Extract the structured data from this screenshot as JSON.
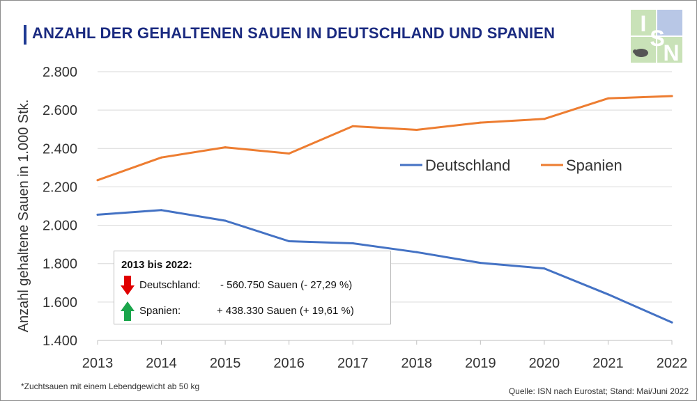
{
  "header": {
    "title": "ANZAHL DER GEHALTENEN SAUEN IN DEUTSCHLAND UND SPANIEN",
    "logo_text": "ISN"
  },
  "colors": {
    "deutschland": "#4472c4",
    "spanien": "#ed7d31",
    "title": "#1a2a80",
    "grid": "#d9d9d9",
    "arrow_down": "#e00000",
    "arrow_up": "#1aa54b"
  },
  "info_box": {
    "heading": "2013 bis 2022:",
    "rows": [
      {
        "label": "Deutschland:",
        "value": "- 560.750 Sauen (- 27,29 %)",
        "direction": "down"
      },
      {
        "label": "Spanien:",
        "value": "+ 438.330 Sauen (+ 19,61 %)",
        "direction": "up"
      }
    ]
  },
  "footer": {
    "footnote": "*Zuchtsauen mit einem Lebendgewicht ab 50 kg",
    "source": "Quelle: ISN nach Eurostat; Stand: Mai/Juni 2022"
  },
  "chart_data": {
    "type": "line",
    "title": "ANZAHL DER GEHALTENEN SAUEN IN DEUTSCHLAND UND SPANIEN",
    "xlabel": "",
    "ylabel": "Anzahl gehaltene Sauen in 1.000 Stk.",
    "x": [
      "2013",
      "2014",
      "2015",
      "2016",
      "2017",
      "2018",
      "2019",
      "2020",
      "2021",
      "2022"
    ],
    "ylim": [
      1400,
      2800
    ],
    "yticks": [
      "1.400",
      "1.600",
      "1.800",
      "2.000",
      "2.200",
      "2.400",
      "2.600",
      "2.800"
    ],
    "grid": true,
    "legend_position": "center-right",
    "series": [
      {
        "name": "Deutschland",
        "color": "#4472c4",
        "values": [
          2055,
          2079,
          2024,
          1917,
          1906,
          1860,
          1804,
          1775,
          1640,
          1494
        ]
      },
      {
        "name": "Spanien",
        "color": "#ed7d31",
        "values": [
          2235,
          2353,
          2406,
          2374,
          2516,
          2497,
          2535,
          2554,
          2661,
          2673
        ]
      }
    ]
  }
}
